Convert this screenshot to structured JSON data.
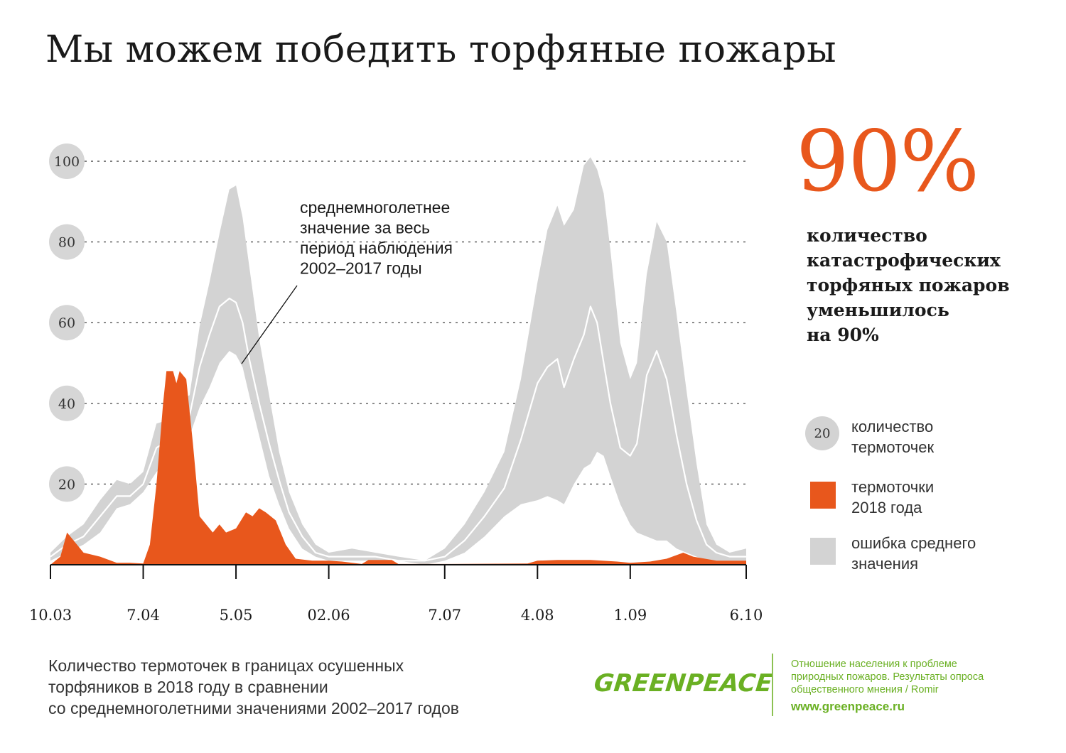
{
  "title": "Мы можем победить торфяные пожары",
  "stat": {
    "value": "90%",
    "lines": [
      "количество",
      "катастрофических",
      "торфяных пожаров",
      "уменьшилось",
      "на 90%"
    ]
  },
  "annotation": {
    "lines": [
      "среднемноголетнее",
      "значение за весь",
      "период наблюдения",
      "2002–2017 годы"
    ]
  },
  "legend": {
    "circle_value": "20",
    "circle_lines": [
      "количество",
      "термоточек"
    ],
    "orange_lines": [
      "термоточки",
      "2018 года"
    ],
    "gray_lines": [
      "ошибка среднего",
      "значения"
    ]
  },
  "footnote": {
    "lines": [
      "Количество термоточек в границах осушенных",
      "торфяников в 2018 году в сравнении",
      "со среднемноголетними значениями 2002–2017 годов"
    ]
  },
  "brand": {
    "logo": "GREENPEACE",
    "source_lines": [
      "Отношение населения к проблеме",
      "природных пожаров. Результаты опроса",
      "общественного мнения / Romir"
    ],
    "url": "www.greenpeace.ru"
  },
  "colors": {
    "orange": "#e8571c",
    "band": "#d3d3d3",
    "mean_line": "#ffffff",
    "green": "#6ab023"
  },
  "chart_data": {
    "type": "area",
    "title": "",
    "xlabel": "",
    "ylabel": "",
    "ylim": [
      0,
      100
    ],
    "x_domain": [
      "2018-03-10",
      "2018-10-06"
    ],
    "yticks": [
      20,
      40,
      60,
      80,
      100
    ],
    "xticks": [
      {
        "date": "2018-03-10",
        "label": "10.03"
      },
      {
        "date": "2018-04-07",
        "label": "7.04"
      },
      {
        "date": "2018-05-05",
        "label": "5.05"
      },
      {
        "date": "2018-06-02",
        "label": "02.06"
      },
      {
        "date": "2018-07-07",
        "label": "7.07"
      },
      {
        "date": "2018-08-04",
        "label": "4.08"
      },
      {
        "date": "2018-09-01",
        "label": "1.09"
      },
      {
        "date": "2018-10-06",
        "label": "6.10"
      }
    ],
    "grid": true,
    "series": [
      {
        "name": "ошибка среднего значения",
        "kind": "band",
        "points": [
          {
            "x": "2018-03-10",
            "low": 1,
            "high": 3
          },
          {
            "x": "2018-03-15",
            "low": 3,
            "high": 7
          },
          {
            "x": "2018-03-20",
            "low": 5,
            "high": 10
          },
          {
            "x": "2018-03-25",
            "low": 8,
            "high": 16
          },
          {
            "x": "2018-03-30",
            "low": 14,
            "high": 21
          },
          {
            "x": "2018-04-03",
            "low": 15,
            "high": 20
          },
          {
            "x": "2018-04-07",
            "low": 18,
            "high": 23
          },
          {
            "x": "2018-04-11",
            "low": 23,
            "high": 35
          },
          {
            "x": "2018-04-15",
            "low": 26,
            "high": 36
          },
          {
            "x": "2018-04-18",
            "low": 28,
            "high": 41
          },
          {
            "x": "2018-04-21",
            "low": 32,
            "high": 42
          },
          {
            "x": "2018-04-24",
            "low": 39,
            "high": 59
          },
          {
            "x": "2018-04-27",
            "low": 44,
            "high": 70
          },
          {
            "x": "2018-04-30",
            "low": 50,
            "high": 82
          },
          {
            "x": "2018-05-03",
            "low": 53,
            "high": 93
          },
          {
            "x": "2018-05-05",
            "low": 52,
            "high": 94
          },
          {
            "x": "2018-05-07",
            "low": 49,
            "high": 86
          },
          {
            "x": "2018-05-09",
            "low": 42,
            "high": 74
          },
          {
            "x": "2018-05-12",
            "low": 32,
            "high": 56
          },
          {
            "x": "2018-05-15",
            "low": 22,
            "high": 42
          },
          {
            "x": "2018-05-18",
            "low": 15,
            "high": 28
          },
          {
            "x": "2018-05-21",
            "low": 9,
            "high": 18
          },
          {
            "x": "2018-05-25",
            "low": 4,
            "high": 10
          },
          {
            "x": "2018-05-29",
            "low": 2,
            "high": 5
          },
          {
            "x": "2018-06-02",
            "low": 1,
            "high": 3
          },
          {
            "x": "2018-06-09",
            "low": 1,
            "high": 4
          },
          {
            "x": "2018-06-16",
            "low": 1,
            "high": 3
          },
          {
            "x": "2018-06-23",
            "low": 1,
            "high": 2
          },
          {
            "x": "2018-07-01",
            "low": 0,
            "high": 1
          },
          {
            "x": "2018-07-07",
            "low": 1,
            "high": 4
          },
          {
            "x": "2018-07-13",
            "low": 3,
            "high": 10
          },
          {
            "x": "2018-07-19",
            "low": 7,
            "high": 18
          },
          {
            "x": "2018-07-25",
            "low": 12,
            "high": 28
          },
          {
            "x": "2018-07-30",
            "low": 15,
            "high": 46
          },
          {
            "x": "2018-08-04",
            "low": 16,
            "high": 70
          },
          {
            "x": "2018-08-07",
            "low": 17,
            "high": 83
          },
          {
            "x": "2018-08-10",
            "low": 16,
            "high": 89
          },
          {
            "x": "2018-08-12",
            "low": 15,
            "high": 84
          },
          {
            "x": "2018-08-15",
            "low": 20,
            "high": 88
          },
          {
            "x": "2018-08-18",
            "low": 24,
            "high": 99
          },
          {
            "x": "2018-08-20",
            "low": 25,
            "high": 101
          },
          {
            "x": "2018-08-22",
            "low": 28,
            "high": 98
          },
          {
            "x": "2018-08-24",
            "low": 27,
            "high": 92
          },
          {
            "x": "2018-08-26",
            "low": 22,
            "high": 78
          },
          {
            "x": "2018-08-29",
            "low": 15,
            "high": 55
          },
          {
            "x": "2018-09-01",
            "low": 10,
            "high": 46
          },
          {
            "x": "2018-09-03",
            "low": 8,
            "high": 50
          },
          {
            "x": "2018-09-06",
            "low": 7,
            "high": 72
          },
          {
            "x": "2018-09-09",
            "low": 6,
            "high": 85
          },
          {
            "x": "2018-09-12",
            "low": 6,
            "high": 80
          },
          {
            "x": "2018-09-15",
            "low": 4,
            "high": 62
          },
          {
            "x": "2018-09-18",
            "low": 3,
            "high": 43
          },
          {
            "x": "2018-09-21",
            "low": 2,
            "high": 25
          },
          {
            "x": "2018-09-24",
            "low": 1,
            "high": 10
          },
          {
            "x": "2018-09-27",
            "low": 1,
            "high": 5
          },
          {
            "x": "2018-10-01",
            "low": 1,
            "high": 3
          },
          {
            "x": "2018-10-06",
            "low": 1,
            "high": 4
          }
        ]
      },
      {
        "name": "",
        "kind": "line",
        "note": "среднемноголетнее значение за весь период наблюдения 2002–2017 годы",
        "points": [
          {
            "x": "2018-03-10",
            "y": 2
          },
          {
            "x": "2018-03-15",
            "y": 5
          },
          {
            "x": "2018-03-20",
            "y": 7
          },
          {
            "x": "2018-03-25",
            "y": 12
          },
          {
            "x": "2018-03-30",
            "y": 17
          },
          {
            "x": "2018-04-03",
            "y": 17
          },
          {
            "x": "2018-04-07",
            "y": 20
          },
          {
            "x": "2018-04-11",
            "y": 29
          },
          {
            "x": "2018-04-15",
            "y": 31
          },
          {
            "x": "2018-04-18",
            "y": 35
          },
          {
            "x": "2018-04-21",
            "y": 37
          },
          {
            "x": "2018-04-24",
            "y": 49
          },
          {
            "x": "2018-04-27",
            "y": 57
          },
          {
            "x": "2018-04-30",
            "y": 64
          },
          {
            "x": "2018-05-03",
            "y": 66
          },
          {
            "x": "2018-05-05",
            "y": 65
          },
          {
            "x": "2018-05-07",
            "y": 60
          },
          {
            "x": "2018-05-09",
            "y": 51
          },
          {
            "x": "2018-05-12",
            "y": 40
          },
          {
            "x": "2018-05-15",
            "y": 30
          },
          {
            "x": "2018-05-18",
            "y": 21
          },
          {
            "x": "2018-05-21",
            "y": 13
          },
          {
            "x": "2018-05-25",
            "y": 7
          },
          {
            "x": "2018-05-29",
            "y": 3
          },
          {
            "x": "2018-06-02",
            "y": 2
          },
          {
            "x": "2018-06-09",
            "y": 2
          },
          {
            "x": "2018-06-16",
            "y": 2
          },
          {
            "x": "2018-06-23",
            "y": 1
          },
          {
            "x": "2018-07-01",
            "y": 1
          },
          {
            "x": "2018-07-07",
            "y": 2
          },
          {
            "x": "2018-07-13",
            "y": 6
          },
          {
            "x": "2018-07-19",
            "y": 12
          },
          {
            "x": "2018-07-25",
            "y": 19
          },
          {
            "x": "2018-07-30",
            "y": 31
          },
          {
            "x": "2018-08-04",
            "y": 45
          },
          {
            "x": "2018-08-07",
            "y": 49
          },
          {
            "x": "2018-08-10",
            "y": 51
          },
          {
            "x": "2018-08-12",
            "y": 44
          },
          {
            "x": "2018-08-15",
            "y": 51
          },
          {
            "x": "2018-08-18",
            "y": 57
          },
          {
            "x": "2018-08-20",
            "y": 64
          },
          {
            "x": "2018-08-22",
            "y": 60
          },
          {
            "x": "2018-08-24",
            "y": 50
          },
          {
            "x": "2018-08-26",
            "y": 40
          },
          {
            "x": "2018-08-29",
            "y": 29
          },
          {
            "x": "2018-09-01",
            "y": 27
          },
          {
            "x": "2018-09-03",
            "y": 30
          },
          {
            "x": "2018-09-06",
            "y": 47
          },
          {
            "x": "2018-09-09",
            "y": 53
          },
          {
            "x": "2018-09-12",
            "y": 46
          },
          {
            "x": "2018-09-15",
            "y": 32
          },
          {
            "x": "2018-09-18",
            "y": 20
          },
          {
            "x": "2018-09-21",
            "y": 11
          },
          {
            "x": "2018-09-24",
            "y": 5
          },
          {
            "x": "2018-09-27",
            "y": 3
          },
          {
            "x": "2018-10-01",
            "y": 2
          },
          {
            "x": "2018-10-06",
            "y": 2
          }
        ]
      },
      {
        "name": "термоточки 2018 года",
        "kind": "area",
        "points": [
          {
            "x": "2018-03-10",
            "y": 0
          },
          {
            "x": "2018-03-13",
            "y": 2
          },
          {
            "x": "2018-03-15",
            "y": 8
          },
          {
            "x": "2018-03-17",
            "y": 6
          },
          {
            "x": "2018-03-20",
            "y": 3
          },
          {
            "x": "2018-03-25",
            "y": 2
          },
          {
            "x": "2018-03-30",
            "y": 0.5
          },
          {
            "x": "2018-04-03",
            "y": 0.5
          },
          {
            "x": "2018-04-07",
            "y": 0.3
          },
          {
            "x": "2018-04-09",
            "y": 5
          },
          {
            "x": "2018-04-11",
            "y": 20
          },
          {
            "x": "2018-04-13",
            "y": 40
          },
          {
            "x": "2018-04-14",
            "y": 48
          },
          {
            "x": "2018-04-16",
            "y": 48
          },
          {
            "x": "2018-04-17",
            "y": 45
          },
          {
            "x": "2018-04-18",
            "y": 48
          },
          {
            "x": "2018-04-20",
            "y": 46
          },
          {
            "x": "2018-04-22",
            "y": 30
          },
          {
            "x": "2018-04-24",
            "y": 12
          },
          {
            "x": "2018-04-26",
            "y": 10
          },
          {
            "x": "2018-04-28",
            "y": 8
          },
          {
            "x": "2018-04-30",
            "y": 10
          },
          {
            "x": "2018-05-02",
            "y": 8
          },
          {
            "x": "2018-05-05",
            "y": 9
          },
          {
            "x": "2018-05-08",
            "y": 13
          },
          {
            "x": "2018-05-10",
            "y": 12
          },
          {
            "x": "2018-05-12",
            "y": 14
          },
          {
            "x": "2018-05-14",
            "y": 13
          },
          {
            "x": "2018-05-17",
            "y": 11
          },
          {
            "x": "2018-05-20",
            "y": 5
          },
          {
            "x": "2018-05-23",
            "y": 1.5
          },
          {
            "x": "2018-05-28",
            "y": 1
          },
          {
            "x": "2018-06-02",
            "y": 1
          },
          {
            "x": "2018-06-06",
            "y": 0.8
          },
          {
            "x": "2018-06-12",
            "y": 0.2
          },
          {
            "x": "2018-06-14",
            "y": 1.2
          },
          {
            "x": "2018-06-21",
            "y": 1.2
          },
          {
            "x": "2018-06-23",
            "y": 0.2
          },
          {
            "x": "2018-07-07",
            "y": 0.2
          },
          {
            "x": "2018-08-01",
            "y": 0.3
          },
          {
            "x": "2018-08-04",
            "y": 1
          },
          {
            "x": "2018-08-10",
            "y": 1.2
          },
          {
            "x": "2018-08-20",
            "y": 1.2
          },
          {
            "x": "2018-08-28",
            "y": 0.8
          },
          {
            "x": "2018-09-01",
            "y": 0.5
          },
          {
            "x": "2018-09-07",
            "y": 0.8
          },
          {
            "x": "2018-09-12",
            "y": 1.5
          },
          {
            "x": "2018-09-17",
            "y": 3
          },
          {
            "x": "2018-09-20",
            "y": 2
          },
          {
            "x": "2018-09-27",
            "y": 1
          },
          {
            "x": "2018-10-06",
            "y": 1
          }
        ]
      }
    ]
  }
}
